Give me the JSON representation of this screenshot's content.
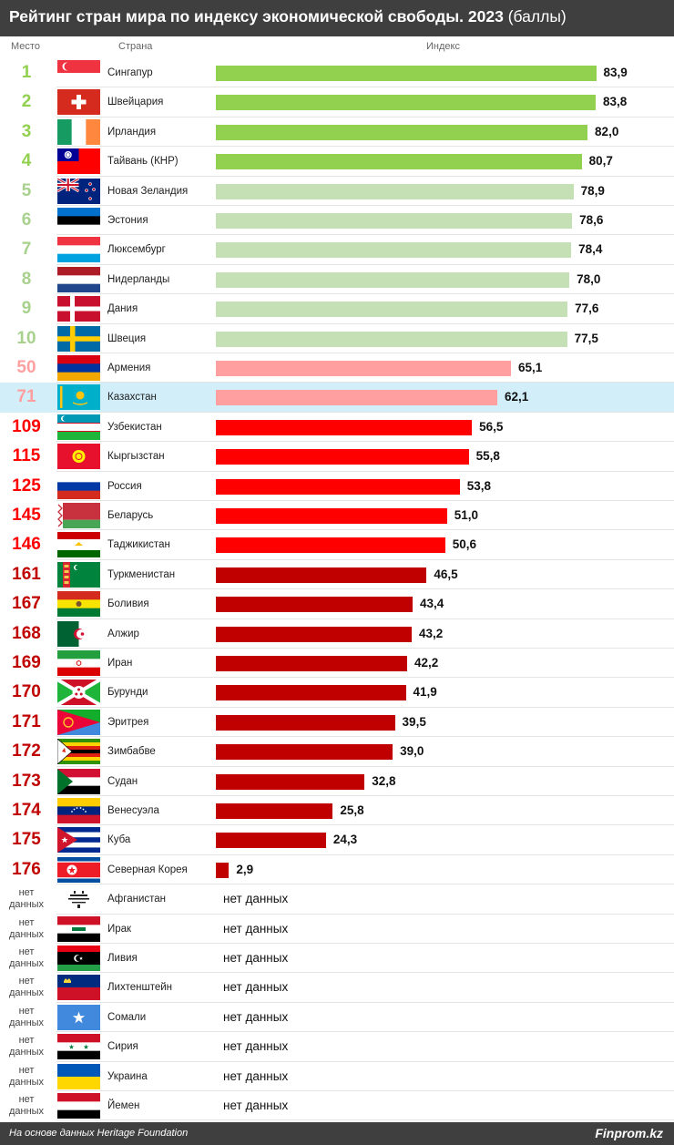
{
  "header": {
    "title": "Рейтинг стран мира по индексу экономической свободы. 2023",
    "unit": "(баллы)"
  },
  "columns": {
    "rank": "Место",
    "country": "Страна",
    "index": "Индекс"
  },
  "footer": {
    "source": "На основе данных Heritage Foundation",
    "brand": "Finprom.kz"
  },
  "no_data_label": "нет данных",
  "colors": {
    "top_green": "#92d050",
    "top_light": "#c5e0b4",
    "mid_pink": "#ff9f9f",
    "red": "#ff0000",
    "dark_red": "#c00000",
    "highlight": "#d1eef9"
  },
  "chart_data": {
    "type": "bar",
    "orientation": "horizontal",
    "title": "Рейтинг стран мира по индексу экономической свободы. 2023",
    "xlim": [
      0,
      84
    ],
    "rows": [
      {
        "rank": "1",
        "country": "Сингапур",
        "value": 83.9,
        "label": "83,9",
        "color": "#92d050",
        "flag": "singapore"
      },
      {
        "rank": "2",
        "country": "Швейцария",
        "value": 83.8,
        "label": "83,8",
        "color": "#92d050",
        "flag": "switzerland"
      },
      {
        "rank": "3",
        "country": "Ирландия",
        "value": 82.0,
        "label": "82,0",
        "color": "#92d050",
        "flag": "ireland"
      },
      {
        "rank": "4",
        "country": "Тайвань (КНР)",
        "value": 80.7,
        "label": "80,7",
        "color": "#92d050",
        "flag": "taiwan"
      },
      {
        "rank": "5",
        "country": "Новая Зеландия",
        "value": 78.9,
        "label": "78,9",
        "color": "#c5e0b4",
        "flag": "new-zealand"
      },
      {
        "rank": "6",
        "country": "Эстония",
        "value": 78.6,
        "label": "78,6",
        "color": "#c5e0b4",
        "flag": "estonia"
      },
      {
        "rank": "7",
        "country": "Люксембург",
        "value": 78.4,
        "label": "78,4",
        "color": "#c5e0b4",
        "flag": "luxembourg"
      },
      {
        "rank": "8",
        "country": "Нидерланды",
        "value": 78.0,
        "label": "78,0",
        "color": "#c5e0b4",
        "flag": "netherlands"
      },
      {
        "rank": "9",
        "country": "Дания",
        "value": 77.6,
        "label": "77,6",
        "color": "#c5e0b4",
        "flag": "denmark"
      },
      {
        "rank": "10",
        "country": "Швеция",
        "value": 77.5,
        "label": "77,5",
        "color": "#c5e0b4",
        "flag": "sweden"
      },
      {
        "rank": "50",
        "country": "Армения",
        "value": 65.1,
        "label": "65,1",
        "color": "#ff9f9f",
        "flag": "armenia"
      },
      {
        "rank": "71",
        "country": "Казахстан",
        "value": 62.1,
        "label": "62,1",
        "color": "#ff9f9f",
        "flag": "kazakhstan",
        "highlight": true
      },
      {
        "rank": "109",
        "country": "Узбекистан",
        "value": 56.5,
        "label": "56,5",
        "color": "#ff0000",
        "flag": "uzbekistan"
      },
      {
        "rank": "115",
        "country": "Кыргызстан",
        "value": 55.8,
        "label": "55,8",
        "color": "#ff0000",
        "flag": "kyrgyzstan"
      },
      {
        "rank": "125",
        "country": "Россия",
        "value": 53.8,
        "label": "53,8",
        "color": "#ff0000",
        "flag": "russia"
      },
      {
        "rank": "145",
        "country": "Беларусь",
        "value": 51.0,
        "label": "51,0",
        "color": "#ff0000",
        "flag": "belarus"
      },
      {
        "rank": "146",
        "country": "Таджикистан",
        "value": 50.6,
        "label": "50,6",
        "color": "#ff0000",
        "flag": "tajikistan"
      },
      {
        "rank": "161",
        "country": "Туркменистан",
        "value": 46.5,
        "label": "46,5",
        "color": "#c00000",
        "flag": "turkmenistan"
      },
      {
        "rank": "167",
        "country": "Боливия",
        "value": 43.4,
        "label": "43,4",
        "color": "#c00000",
        "flag": "bolivia"
      },
      {
        "rank": "168",
        "country": "Алжир",
        "value": 43.2,
        "label": "43,2",
        "color": "#c00000",
        "flag": "algeria"
      },
      {
        "rank": "169",
        "country": "Иран",
        "value": 42.2,
        "label": "42,2",
        "color": "#c00000",
        "flag": "iran"
      },
      {
        "rank": "170",
        "country": "Бурунди",
        "value": 41.9,
        "label": "41,9",
        "color": "#c00000",
        "flag": "burundi"
      },
      {
        "rank": "171",
        "country": "Эритрея",
        "value": 39.5,
        "label": "39,5",
        "color": "#c00000",
        "flag": "eritrea"
      },
      {
        "rank": "172",
        "country": "Зимбабве",
        "value": 39.0,
        "label": "39,0",
        "color": "#c00000",
        "flag": "zimbabwe"
      },
      {
        "rank": "173",
        "country": "Судан",
        "value": 32.8,
        "label": "32,8",
        "color": "#c00000",
        "flag": "sudan"
      },
      {
        "rank": "174",
        "country": "Венесуэла",
        "value": 25.8,
        "label": "25,8",
        "color": "#c00000",
        "flag": "venezuela"
      },
      {
        "rank": "175",
        "country": "Куба",
        "value": 24.3,
        "label": "24,3",
        "color": "#c00000",
        "flag": "cuba"
      },
      {
        "rank": "176",
        "country": "Северная Корея",
        "value": 2.9,
        "label": "2,9",
        "color": "#c00000",
        "flag": "north-korea"
      },
      {
        "rank": "нет данных",
        "country": "Афганистан",
        "value": null,
        "flag": "afghanistan"
      },
      {
        "rank": "нет данных",
        "country": "Ирак",
        "value": null,
        "flag": "iraq"
      },
      {
        "rank": "нет данных",
        "country": "Ливия",
        "value": null,
        "flag": "libya"
      },
      {
        "rank": "нет данных",
        "country": "Лихтенштейн",
        "value": null,
        "flag": "liechtenstein"
      },
      {
        "rank": "нет данных",
        "country": "Сомали",
        "value": null,
        "flag": "somalia"
      },
      {
        "rank": "нет данных",
        "country": "Сирия",
        "value": null,
        "flag": "syria"
      },
      {
        "rank": "нет данных",
        "country": "Украина",
        "value": null,
        "flag": "ukraine"
      },
      {
        "rank": "нет данных",
        "country": "Йемен",
        "value": null,
        "flag": "yemen"
      }
    ]
  }
}
